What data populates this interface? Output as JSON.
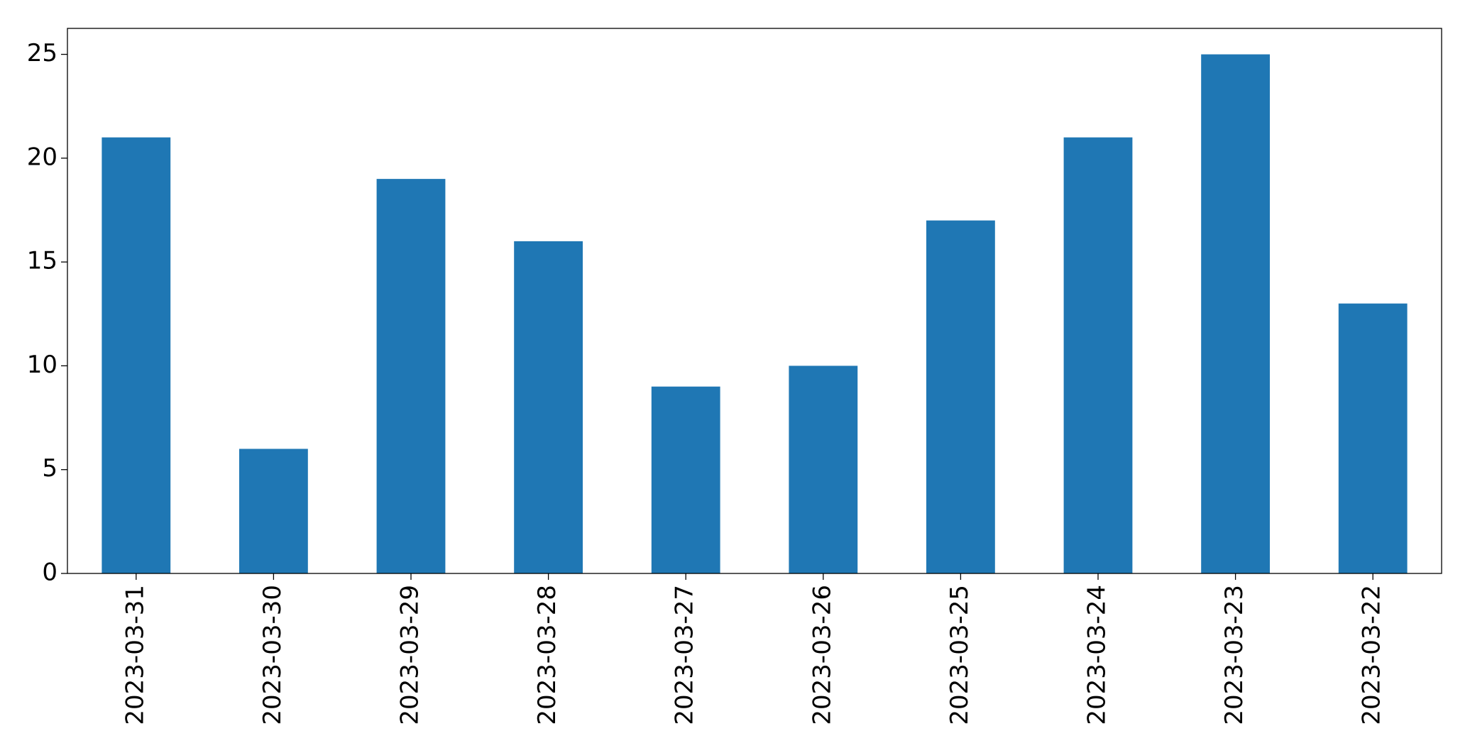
{
  "chart_data": {
    "type": "bar",
    "categories": [
      "2023-03-31",
      "2023-03-30",
      "2023-03-29",
      "2023-03-28",
      "2023-03-27",
      "2023-03-26",
      "2023-03-25",
      "2023-03-24",
      "2023-03-23",
      "2023-03-22"
    ],
    "values": [
      21,
      6,
      19,
      16,
      9,
      10,
      17,
      21,
      25,
      13
    ],
    "color": "#1f77b4",
    "ylim": [
      0,
      26.25
    ],
    "yticks": [
      0,
      5,
      10,
      15,
      20,
      25
    ],
    "grid": false
  }
}
